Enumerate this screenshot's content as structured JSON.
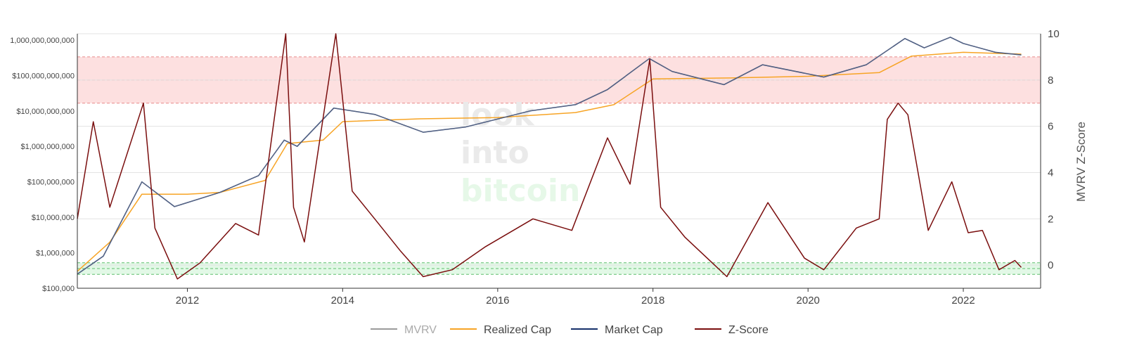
{
  "chart_data": {
    "type": "line",
    "watermark": [
      "look",
      "into",
      "bitcoin"
    ],
    "x_ticks": [
      "2012",
      "2014",
      "2016",
      "2018",
      "2020",
      "2022"
    ],
    "xlim": [
      "2010-08-01",
      "2022-12-31"
    ],
    "y_left": {
      "scale": "log",
      "lim": [
        100000,
        1500000000000
      ],
      "ticks": [
        {
          "value": 100000,
          "label": "$100,000"
        },
        {
          "value": 1000000,
          "label": "$1,000,000"
        },
        {
          "value": 10000000,
          "label": "$10,000,000"
        },
        {
          "value": 100000000,
          "label": "$100,000,000"
        },
        {
          "value": 1000000000,
          "label": "$1,000,000,000"
        },
        {
          "value": 10000000000,
          "label": "$10,000,000,000"
        },
        {
          "value": 100000000000,
          "label": "$100,000,000,000"
        },
        {
          "value": 1000000000000,
          "label": "1,000,000,000,000"
        }
      ]
    },
    "y_right": {
      "label": "MVRV Z-Score",
      "lim": [
        -1,
        10
      ],
      "ticks": [
        0,
        2,
        4,
        6,
        8,
        10
      ]
    },
    "bands": [
      {
        "axis": "right",
        "from": 7,
        "to": 9,
        "color": "#fde0e0",
        "line": "#e88a8a"
      },
      {
        "axis": "right",
        "from": -0.4,
        "to": 0.1,
        "color": "#e2f8e6",
        "line": "#5fbf6f"
      }
    ],
    "grid": true,
    "legend_position": "bottom",
    "series": [
      {
        "name": "MVRV",
        "color": "#9a9a9a",
        "axis": "left",
        "points": [
          [
            "2010-08-01",
            250000
          ],
          [
            "2010-12-01",
            800000
          ],
          [
            "2011-06-01",
            100000000
          ],
          [
            "2011-11-01",
            20000000
          ],
          [
            "2012-06-01",
            50000000
          ],
          [
            "2012-12-01",
            150000000
          ],
          [
            "2013-04-01",
            1500000000
          ],
          [
            "2013-06-01",
            1000000000
          ],
          [
            "2013-11-20",
            12000000000
          ],
          [
            "2014-06-01",
            8000000000
          ],
          [
            "2015-01-15",
            2500000000
          ],
          [
            "2015-08-01",
            3500000000
          ],
          [
            "2016-06-01",
            10000000000
          ],
          [
            "2017-01-01",
            15000000000
          ],
          [
            "2017-06-01",
            40000000000
          ],
          [
            "2017-12-15",
            300000000000
          ],
          [
            "2018-04-01",
            130000000000
          ],
          [
            "2018-12-01",
            55000000000
          ],
          [
            "2019-06-01",
            200000000000
          ],
          [
            "2020-03-15",
            90000000000
          ],
          [
            "2020-10-01",
            200000000000
          ],
          [
            "2021-04-01",
            1100000000000
          ],
          [
            "2021-07-01",
            600000000000
          ],
          [
            "2021-11-01",
            1200000000000
          ],
          [
            "2022-01-01",
            800000000000
          ],
          [
            "2022-06-01",
            450000000000
          ],
          [
            "2022-10-01",
            380000000000
          ]
        ]
      },
      {
        "name": "Realized Cap",
        "color": "#f7a425",
        "axis": "left",
        "points": [
          [
            "2010-08-01",
            300000
          ],
          [
            "2011-01-01",
            2000000
          ],
          [
            "2011-06-01",
            45000000
          ],
          [
            "2012-01-01",
            45000000
          ],
          [
            "2012-06-01",
            50000000
          ],
          [
            "2013-01-01",
            110000000
          ],
          [
            "2013-04-15",
            1200000000
          ],
          [
            "2013-10-01",
            1500000000
          ],
          [
            "2014-01-01",
            5000000000
          ],
          [
            "2015-01-01",
            6000000000
          ],
          [
            "2016-01-01",
            6500000000
          ],
          [
            "2017-01-01",
            9000000000
          ],
          [
            "2017-07-01",
            15000000000
          ],
          [
            "2018-01-01",
            80000000000
          ],
          [
            "2019-01-01",
            85000000000
          ],
          [
            "2020-01-01",
            95000000000
          ],
          [
            "2020-12-01",
            120000000000
          ],
          [
            "2021-05-01",
            350000000000
          ],
          [
            "2022-01-01",
            450000000000
          ],
          [
            "2022-10-01",
            400000000000
          ]
        ]
      },
      {
        "name": "Market Cap",
        "color": "#16306b",
        "axis": "left",
        "points": [
          [
            "2010-08-01",
            250000
          ],
          [
            "2010-12-01",
            800000
          ],
          [
            "2011-06-01",
            100000000
          ],
          [
            "2011-11-01",
            20000000
          ],
          [
            "2012-06-01",
            50000000
          ],
          [
            "2012-12-01",
            150000000
          ],
          [
            "2013-04-01",
            1500000000
          ],
          [
            "2013-06-01",
            1000000000
          ],
          [
            "2013-11-20",
            12000000000
          ],
          [
            "2014-06-01",
            8000000000
          ],
          [
            "2015-01-15",
            2500000000
          ],
          [
            "2015-08-01",
            3500000000
          ],
          [
            "2016-06-01",
            10000000000
          ],
          [
            "2017-01-01",
            15000000000
          ],
          [
            "2017-06-01",
            40000000000
          ],
          [
            "2017-12-15",
            300000000000
          ],
          [
            "2018-04-01",
            130000000000
          ],
          [
            "2018-12-01",
            55000000000
          ],
          [
            "2019-06-01",
            200000000000
          ],
          [
            "2020-03-15",
            90000000000
          ],
          [
            "2020-10-01",
            200000000000
          ],
          [
            "2021-04-01",
            1100000000000
          ],
          [
            "2021-07-01",
            600000000000
          ],
          [
            "2021-11-01",
            1200000000000
          ],
          [
            "2022-01-01",
            800000000000
          ],
          [
            "2022-06-01",
            450000000000
          ],
          [
            "2022-10-01",
            380000000000
          ]
        ]
      },
      {
        "name": "Z-Score",
        "color": "#7a0e0e",
        "axis": "right",
        "points": [
          [
            "2010-08-01",
            2.0
          ],
          [
            "2010-10-15",
            6.2
          ],
          [
            "2011-01-01",
            2.5
          ],
          [
            "2011-06-08",
            7.0
          ],
          [
            "2011-08-01",
            1.6
          ],
          [
            "2011-11-15",
            -0.6
          ],
          [
            "2012-03-01",
            0.1
          ],
          [
            "2012-08-15",
            1.8
          ],
          [
            "2012-12-01",
            1.3
          ],
          [
            "2013-04-08",
            10.0
          ],
          [
            "2013-05-15",
            2.5
          ],
          [
            "2013-07-05",
            1.0
          ],
          [
            "2013-11-30",
            10.0
          ],
          [
            "2014-02-15",
            3.2
          ],
          [
            "2014-06-01",
            2.0
          ],
          [
            "2014-10-01",
            0.6
          ],
          [
            "2015-01-15",
            -0.5
          ],
          [
            "2015-06-01",
            -0.2
          ],
          [
            "2015-11-05",
            0.8
          ],
          [
            "2016-06-15",
            2.0
          ],
          [
            "2016-12-15",
            1.5
          ],
          [
            "2017-06-01",
            5.5
          ],
          [
            "2017-09-15",
            3.5
          ],
          [
            "2017-12-17",
            8.9
          ],
          [
            "2018-02-06",
            2.5
          ],
          [
            "2018-06-01",
            1.2
          ],
          [
            "2018-12-15",
            -0.5
          ],
          [
            "2019-06-26",
            2.7
          ],
          [
            "2019-12-15",
            0.3
          ],
          [
            "2020-03-15",
            -0.2
          ],
          [
            "2020-08-15",
            1.6
          ],
          [
            "2020-12-01",
            2.0
          ],
          [
            "2021-01-08",
            6.3
          ],
          [
            "2021-02-28",
            7.0
          ],
          [
            "2021-04-15",
            6.5
          ],
          [
            "2021-07-20",
            1.5
          ],
          [
            "2021-11-08",
            3.6
          ],
          [
            "2022-01-24",
            1.4
          ],
          [
            "2022-04-01",
            1.5
          ],
          [
            "2022-06-18",
            -0.2
          ],
          [
            "2022-09-01",
            0.2
          ],
          [
            "2022-10-01",
            -0.1
          ]
        ]
      }
    ]
  }
}
